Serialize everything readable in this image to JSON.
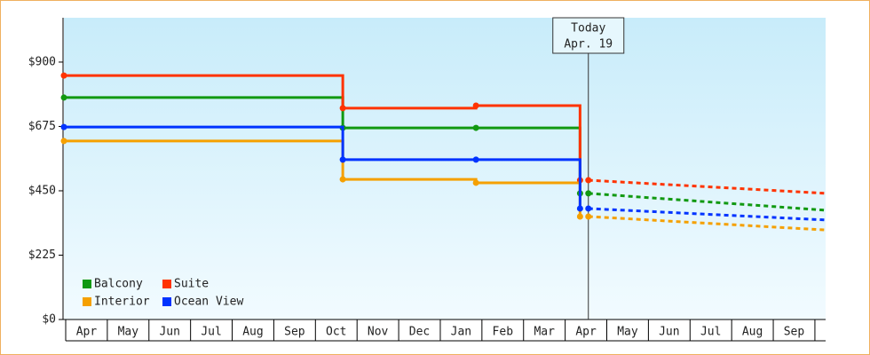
{
  "chart_data": {
    "type": "step-line",
    "xlim": [
      0,
      18.3
    ],
    "xticks": [
      {
        "value": 0.5,
        "label": "Apr"
      },
      {
        "value": 1.5,
        "label": "May"
      },
      {
        "value": 2.5,
        "label": "Jun"
      },
      {
        "value": 3.5,
        "label": "Jul"
      },
      {
        "value": 4.5,
        "label": "Aug"
      },
      {
        "value": 5.5,
        "label": "Sep"
      },
      {
        "value": 6.5,
        "label": "Oct"
      },
      {
        "value": 7.5,
        "label": "Nov"
      },
      {
        "value": 8.5,
        "label": "Dec"
      },
      {
        "value": 9.5,
        "label": "Jan"
      },
      {
        "value": 10.5,
        "label": "Feb"
      },
      {
        "value": 11.5,
        "label": "Mar"
      },
      {
        "value": 12.5,
        "label": "Apr"
      },
      {
        "value": 13.5,
        "label": "May"
      },
      {
        "value": 14.5,
        "label": "Jun"
      },
      {
        "value": 15.5,
        "label": "Jul"
      },
      {
        "value": 16.5,
        "label": "Aug"
      },
      {
        "value": 17.5,
        "label": "Sep"
      }
    ],
    "ylim": [
      0,
      1055
    ],
    "yticks": [
      {
        "value": 0,
        "label": "$0"
      },
      {
        "value": 225,
        "label": "$225"
      },
      {
        "value": 450,
        "label": "$450"
      },
      {
        "value": 675,
        "label": "$675"
      },
      {
        "value": 900,
        "label": "$900"
      }
    ],
    "x": [
      0,
      6.7,
      9.9,
      12.4
    ],
    "projection_x": [
      12.6,
      18.3
    ],
    "series": [
      {
        "name": "Balcony",
        "color": "#119911",
        "values": [
          776,
          670,
          670,
          441
        ],
        "projection_values": [
          441,
          382
        ]
      },
      {
        "name": "Suite",
        "color": "#ff3300",
        "values": [
          853,
          739,
          748,
          487
        ],
        "projection_values": [
          487,
          441
        ]
      },
      {
        "name": "Interior",
        "color": "#f5a000",
        "values": [
          624,
          490,
          478,
          360
        ],
        "projection_values": [
          360,
          313
        ]
      },
      {
        "name": "Ocean View",
        "color": "#0033ff",
        "values": [
          673,
          559,
          559,
          388
        ],
        "projection_values": [
          388,
          348
        ]
      }
    ],
    "annotation": {
      "x": 12.6,
      "lines": [
        "Today",
        "Apr. 19"
      ]
    }
  }
}
